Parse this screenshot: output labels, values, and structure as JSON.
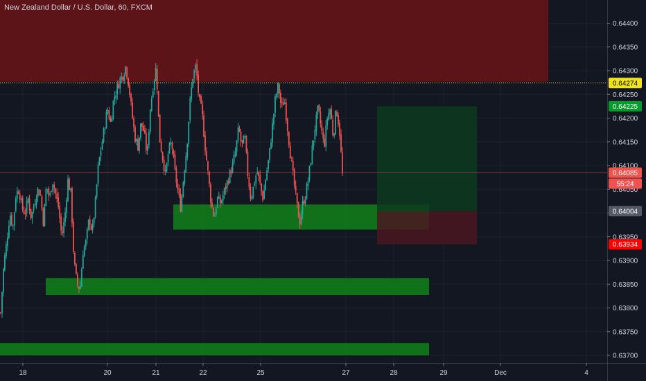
{
  "chart_title": "New Zealand Dollar / U.S. Dollar, 60, FXCM",
  "colors": {
    "background": "#131722",
    "grid": "#1e222d",
    "up": "#26a69a",
    "down": "#ef5350",
    "supply_zone": "#5d1419",
    "demand_zone": "#117a1a",
    "target_zone": "#0c3a1d",
    "stop_zone": "#4a1620",
    "current_line": "#f7d74a",
    "last_line": "#b2475a"
  },
  "y_axis": {
    "ticks": [
      "0.64400",
      "0.64350",
      "0.64300",
      "0.64250",
      "0.64200",
      "0.64150",
      "0.64100",
      "0.64050",
      "0.64000",
      "0.63950",
      "0.63900",
      "0.63850",
      "0.63800",
      "0.63750",
      "0.63700"
    ],
    "tags": [
      {
        "label": "0.64274",
        "value": 0.64274,
        "bg": "#f0e31c",
        "fg": "#000000"
      },
      {
        "label": "0.64225",
        "value": 0.64225,
        "bg": "#089a2b",
        "fg": "#ffffff"
      },
      {
        "label": "0.64085",
        "value": 0.64085,
        "bg": "#ef5350",
        "fg": "#ffffff"
      },
      {
        "label": "55:24",
        "value": 0.64062,
        "bg": "#ef5350",
        "fg": "#ffffff"
      },
      {
        "label": "0.64004",
        "value": 0.64004,
        "bg": "#555a66",
        "fg": "#ffffff"
      },
      {
        "label": "0.63934",
        "value": 0.63934,
        "bg": "#ff0000",
        "fg": "#ffffff"
      }
    ]
  },
  "x_axis": {
    "ticks": [
      "18",
      "20",
      "21",
      "22",
      "25",
      "27",
      "28",
      "29",
      "Dec",
      "4"
    ]
  },
  "zones": [
    {
      "name": "supply-zone",
      "from": 0.64462,
      "to": 0.64277
    },
    {
      "name": "demand-zone-upper",
      "from": 0.64018,
      "to": 0.63965
    },
    {
      "name": "demand-zone-middle",
      "from": 0.63863,
      "to": 0.63827
    },
    {
      "name": "demand-zone-lower",
      "from": 0.63726,
      "to": 0.637
    },
    {
      "name": "position-target",
      "from": 0.64225,
      "to": 0.64004
    },
    {
      "name": "position-stop",
      "from": 0.64004,
      "to": 0.63934
    }
  ],
  "chart_data": {
    "type": "candlestick",
    "title": "New Zealand Dollar / U.S. Dollar, 60, FXCM",
    "x_ticks": [
      "18",
      "20",
      "21",
      "22",
      "25",
      "27",
      "28",
      "29",
      "Dec",
      "4"
    ],
    "y_ticks": [
      "0.64400",
      "0.64350",
      "0.64300",
      "0.64250",
      "0.64200",
      "0.64150",
      "0.64100",
      "0.64050",
      "0.64000",
      "0.63950",
      "0.63900",
      "0.63850",
      "0.63800",
      "0.63750",
      "0.63700"
    ],
    "ylim": [
      0.63693,
      0.64462
    ],
    "current_price": 0.64274,
    "last_price": 0.64085,
    "close_path": [
      0.6379,
      0.6389,
      0.6394,
      0.64,
      0.6397,
      0.6404,
      0.6405,
      0.6401,
      0.64,
      0.6403,
      0.6399,
      0.6402,
      0.6405,
      0.6404,
      0.6398,
      0.6406,
      0.6403,
      0.6407,
      0.6404,
      0.6401,
      0.6395,
      0.6399,
      0.6407,
      0.6404,
      0.639,
      0.6385,
      0.6384,
      0.6392,
      0.6394,
      0.6399,
      0.6396,
      0.6402,
      0.641,
      0.6414,
      0.6418,
      0.6422,
      0.6419,
      0.6424,
      0.6426,
      0.6428,
      0.6429,
      0.6431,
      0.6427,
      0.6421,
      0.6416,
      0.6414,
      0.6419,
      0.6417,
      0.6412,
      0.6422,
      0.6427,
      0.6431,
      0.6416,
      0.6412,
      0.6408,
      0.6413,
      0.6415,
      0.6409,
      0.6405,
      0.6401,
      0.6408,
      0.6414,
      0.6423,
      0.6429,
      0.6431,
      0.6424,
      0.6421,
      0.6414,
      0.6408,
      0.6402,
      0.6399,
      0.6403,
      0.6402,
      0.6404,
      0.6406,
      0.6408,
      0.641,
      0.6413,
      0.6418,
      0.6414,
      0.6416,
      0.6408,
      0.6403,
      0.6406,
      0.6409,
      0.6406,
      0.6403,
      0.6408,
      0.6412,
      0.6418,
      0.6424,
      0.6427,
      0.6422,
      0.6424,
      0.6418,
      0.6412,
      0.6407,
      0.6402,
      0.6398,
      0.6402,
      0.6404,
      0.6408,
      0.6413,
      0.6418,
      0.6422,
      0.6418,
      0.6414,
      0.642,
      0.6422,
      0.6416,
      0.6422,
      0.6418,
      0.6408
    ]
  }
}
